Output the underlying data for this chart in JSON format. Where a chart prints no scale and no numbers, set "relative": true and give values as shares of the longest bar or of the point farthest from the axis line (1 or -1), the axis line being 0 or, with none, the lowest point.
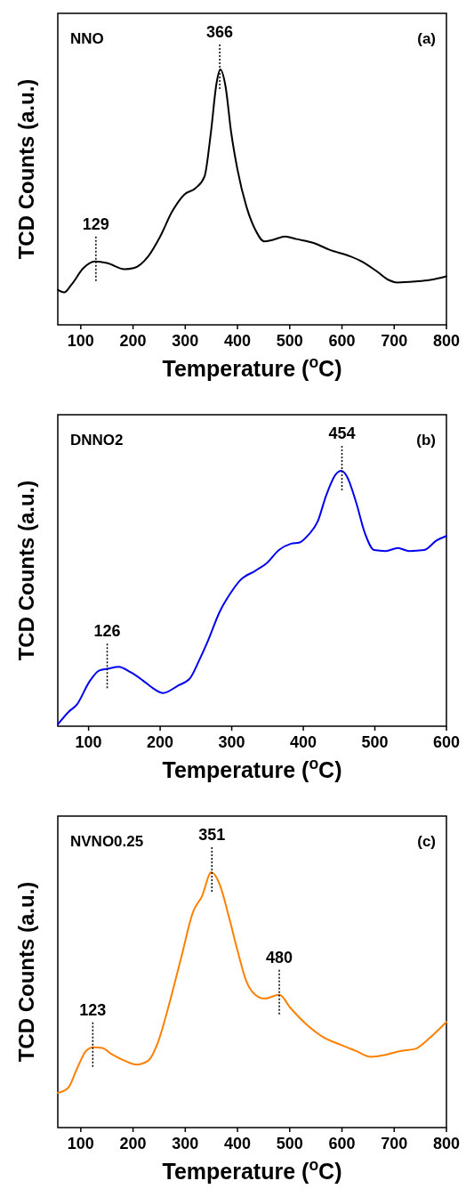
{
  "chart_data": [
    {
      "type": "line",
      "xlabel": "Temperature ($^{o}$C)",
      "ylabel": "TCD Counts (a.u.)",
      "relative": true,
      "xlim": [
        56,
        800
      ],
      "xticks": [
        100,
        200,
        300,
        400,
        500,
        600,
        700,
        800
      ],
      "annotations": [
        "NNO",
        "(a)",
        {
          "text": "129",
          "x": 129,
          "y": 0.248
        },
        {
          "text": "366",
          "x": 366,
          "y": 1.0
        }
      ],
      "series": [
        {
          "color": "#000000",
          "x": [
            56,
            68,
            82,
            105,
            127,
            150,
            184,
            201,
            229,
            252,
            275,
            298,
            320,
            337,
            349,
            360,
            367,
            377,
            388,
            400,
            417,
            434,
            451,
            468,
            491,
            513,
            547,
            576,
            616,
            638,
            667,
            689,
            706,
            741,
            769,
            800
          ],
          "values": [
            0.137,
            0.127,
            0.157,
            0.222,
            0.248,
            0.242,
            0.218,
            0.222,
            0.268,
            0.346,
            0.444,
            0.51,
            0.536,
            0.582,
            0.752,
            0.948,
            1.0,
            0.935,
            0.752,
            0.608,
            0.464,
            0.373,
            0.327,
            0.333,
            0.346,
            0.336,
            0.32,
            0.294,
            0.268,
            0.248,
            0.209,
            0.176,
            0.166,
            0.17,
            0.176,
            0.19
          ]
        }
      ]
    },
    {
      "type": "line",
      "xlabel": "Temperature ($^{o}$C)",
      "ylabel": "TCD Counts (a.u.)",
      "relative": true,
      "xlim": [
        57,
        600
      ],
      "xticks": [
        100,
        200,
        300,
        400,
        500,
        600
      ],
      "annotations": [
        "DNNO2",
        "(b)",
        {
          "text": "126",
          "x": 126,
          "y": 0.226
        },
        {
          "text": "454",
          "x": 454,
          "y": 1.0
        }
      ],
      "series": [
        {
          "color": "#0000ee",
          "x": [
            57,
            72,
            84,
            101,
            115,
            128,
            142,
            159,
            175,
            192,
            204,
            225,
            242,
            254,
            267,
            283,
            300,
            312,
            333,
            349,
            366,
            383,
            395,
            407,
            420,
            432,
            445,
            453,
            461,
            474,
            486,
            499,
            515,
            532,
            548,
            569,
            586,
            600
          ],
          "values": [
            0.007,
            0.056,
            0.086,
            0.174,
            0.218,
            0.226,
            0.233,
            0.211,
            0.181,
            0.145,
            0.13,
            0.159,
            0.189,
            0.255,
            0.336,
            0.447,
            0.528,
            0.572,
            0.609,
            0.639,
            0.69,
            0.715,
            0.72,
            0.749,
            0.801,
            0.904,
            0.985,
            1.0,
            0.978,
            0.875,
            0.757,
            0.69,
            0.686,
            0.698,
            0.686,
            0.69,
            0.727,
            0.745
          ]
        }
      ]
    },
    {
      "type": "line",
      "xlabel": "Temperature ($^{o}$C)",
      "ylabel": "TCD Counts (a.u.)",
      "relative": true,
      "xlim": [
        56,
        800
      ],
      "xticks": [
        100,
        200,
        300,
        400,
        500,
        600,
        700,
        800
      ],
      "annotations": [
        "NVNO0.25",
        "(c)",
        {
          "text": "123",
          "x": 123,
          "y": 0.315
        },
        {
          "text": "351",
          "x": 351,
          "y": 1.0
        },
        {
          "text": "480",
          "x": 480,
          "y": 0.52
        }
      ],
      "series": [
        {
          "color": "#ff8000",
          "x": [
            56,
            76,
            93,
            110,
            124,
            141,
            161,
            184,
            207,
            229,
            247,
            269,
            292,
            315,
            332,
            350,
            366,
            383,
            400,
            417,
            434,
            451,
            480,
            502,
            531,
            565,
            599,
            627,
            655,
            684,
            712,
            740,
            769,
            800
          ],
          "values": [
            0.136,
            0.156,
            0.232,
            0.3,
            0.315,
            0.312,
            0.285,
            0.262,
            0.247,
            0.262,
            0.33,
            0.482,
            0.664,
            0.845,
            0.906,
            1.0,
            0.952,
            0.83,
            0.694,
            0.573,
            0.52,
            0.505,
            0.52,
            0.467,
            0.406,
            0.353,
            0.323,
            0.3,
            0.277,
            0.285,
            0.3,
            0.308,
            0.353,
            0.414
          ]
        }
      ]
    }
  ]
}
